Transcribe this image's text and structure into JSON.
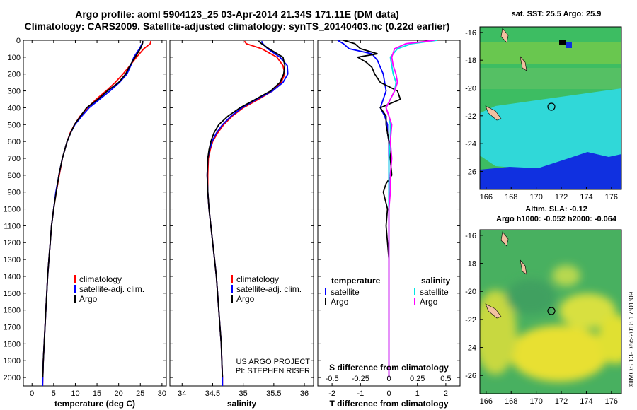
{
  "header": {
    "title_line1": "Argo profile: aoml 5904123_25 03-Apr-2014 21.34S 171.11E (DM data)",
    "title_line2": "Climatology: CARS2009. Satellite-adjusted climatology: synTS_20140403.nc (0.22d earlier)"
  },
  "credit": "©IMOS 13-Dec-2018 17:01:09",
  "colors": {
    "climatology": "#ff0000",
    "satellite": "#0000ff",
    "argo": "#000000",
    "sal_satellite": "#00e5e5",
    "sal_argo": "#ff00ff"
  },
  "chart_data": [
    {
      "type": "line",
      "xlabel": "temperature (deg C)",
      "ylabel": "",
      "xlim": [
        -2,
        31
      ],
      "ylim": [
        2050,
        0
      ],
      "xticks": [
        0,
        5,
        10,
        15,
        20,
        25,
        30
      ],
      "yticks": [
        0,
        100,
        200,
        300,
        400,
        500,
        600,
        700,
        800,
        900,
        1000,
        1100,
        1200,
        1300,
        1400,
        1500,
        1600,
        1700,
        1800,
        1900,
        2000
      ],
      "legend_position": "middle",
      "series": [
        {
          "name": "climatology",
          "color": "#ff0000",
          "depth": [
            5,
            20,
            50,
            100,
            150,
            200,
            250,
            300,
            350,
            400,
            450,
            500,
            550,
            600,
            700,
            800,
            900,
            1000,
            1100,
            1200,
            1300,
            1400,
            1500,
            1600,
            1700,
            1800,
            1900,
            2000,
            2050
          ],
          "values": [
            27.4,
            27.3,
            25.8,
            24.1,
            22.6,
            21.0,
            19.2,
            17.1,
            14.8,
            12.8,
            11.1,
            9.8,
            8.8,
            8.1,
            7.0,
            6.3,
            5.6,
            5.0,
            4.5,
            4.2,
            3.9,
            3.6,
            3.4,
            3.2,
            3.0,
            2.8,
            2.6,
            2.5,
            2.45
          ]
        },
        {
          "name": "satellite-adj. clim.",
          "color": "#0000ff",
          "depth": [
            5,
            20,
            50,
            100,
            150,
            200,
            250,
            300,
            350,
            400,
            450,
            500,
            550,
            600,
            700,
            800,
            900,
            1000,
            1100,
            1200,
            1300,
            1400,
            1500,
            1600,
            1700,
            1800,
            1900,
            2000,
            2050
          ],
          "values": [
            25.6,
            25.4,
            24.8,
            23.5,
            22.8,
            21.9,
            20.2,
            18.0,
            15.6,
            13.2,
            11.5,
            9.9,
            8.9,
            8.1,
            7.0,
            6.2,
            5.5,
            5.0,
            4.5,
            4.2,
            3.9,
            3.6,
            3.4,
            3.2,
            3.0,
            2.8,
            2.6,
            2.5,
            2.45
          ]
        },
        {
          "name": "Argo",
          "color": "#000000",
          "depth": [
            5,
            20,
            50,
            100,
            150,
            200,
            250,
            300,
            350,
            400,
            450,
            500,
            550,
            600,
            700,
            800,
            900,
            1000,
            1100,
            1200,
            1300,
            1400,
            1500,
            1600,
            1700,
            1800,
            1900,
            2000
          ],
          "values": [
            25.6,
            25.5,
            25.0,
            23.8,
            22.6,
            21.6,
            20.0,
            17.4,
            15.2,
            12.6,
            11.2,
            9.8,
            8.9,
            8.1,
            7.0,
            6.2,
            5.6,
            5.0,
            4.5,
            4.2,
            3.9,
            3.6,
            3.4,
            3.2,
            3.0,
            2.8,
            2.6,
            2.5
          ]
        }
      ]
    },
    {
      "type": "line",
      "xlabel": "salinity",
      "ylabel": "",
      "xlim": [
        33.8,
        36.15
      ],
      "ylim": [
        2050,
        0
      ],
      "xticks": [
        34,
        34.5,
        35,
        35.5,
        36
      ],
      "legend_position": "middle",
      "annotations": [
        "US ARGO PROJECT",
        "PI: STEPHEN RISER"
      ],
      "series": [
        {
          "name": "climatology",
          "color": "#ff0000",
          "depth": [
            5,
            20,
            50,
            100,
            150,
            200,
            250,
            300,
            350,
            400,
            450,
            500,
            550,
            600,
            650,
            700,
            800,
            900,
            1000,
            1100,
            1200,
            1300,
            1400,
            1500,
            1600,
            1700,
            1800,
            1900,
            2000,
            2050
          ],
          "values": [
            35.02,
            35.05,
            35.3,
            35.55,
            35.65,
            35.68,
            35.62,
            35.48,
            35.25,
            35.0,
            34.82,
            34.68,
            34.58,
            34.5,
            34.46,
            34.43,
            34.42,
            34.42,
            34.44,
            34.47,
            34.5,
            34.53,
            34.56,
            34.58,
            34.6,
            34.62,
            34.64,
            34.65,
            34.66,
            34.66
          ]
        },
        {
          "name": "satellite-adj. clim.",
          "color": "#0000ff",
          "depth": [
            5,
            20,
            50,
            100,
            150,
            200,
            250,
            300,
            350,
            400,
            450,
            500,
            550,
            600,
            650,
            700,
            800,
            900,
            1000,
            1100,
            1200,
            1300,
            1400,
            1500,
            1600,
            1700,
            1800,
            1900,
            2000,
            2050
          ],
          "values": [
            35.3,
            35.32,
            35.4,
            35.6,
            35.72,
            35.73,
            35.65,
            35.48,
            35.22,
            34.98,
            34.8,
            34.66,
            34.56,
            34.49,
            34.45,
            34.42,
            34.41,
            34.42,
            34.44,
            34.47,
            34.5,
            34.53,
            34.56,
            34.58,
            34.6,
            34.62,
            34.64,
            34.65,
            34.66,
            34.66
          ]
        },
        {
          "name": "Argo",
          "color": "#000000",
          "depth": [
            5,
            20,
            50,
            100,
            150,
            200,
            250,
            300,
            350,
            400,
            450,
            500,
            550,
            600,
            650,
            700,
            800,
            900,
            1000,
            1100,
            1200,
            1300,
            1400,
            1500,
            1600,
            1700,
            1800,
            1900,
            2000
          ],
          "values": [
            35.25,
            35.3,
            35.42,
            35.65,
            35.68,
            35.66,
            35.6,
            35.45,
            35.2,
            34.95,
            34.75,
            34.6,
            34.52,
            34.47,
            34.44,
            34.42,
            34.41,
            34.42,
            34.44,
            34.47,
            34.5,
            34.53,
            34.56,
            34.58,
            34.6,
            34.62,
            34.64,
            34.65,
            34.66
          ]
        }
      ]
    },
    {
      "type": "line",
      "xlabel": "T difference from climatology",
      "xlabel_top": "S difference from climatology",
      "ylabel": "",
      "xlim": [
        -2.5,
        2.5
      ],
      "ylim": [
        2050,
        0
      ],
      "xticks": [
        -2,
        -1,
        0,
        1,
        2
      ],
      "xticks_top_labels": [
        "-0.5",
        "-0.25",
        "0",
        "0.25",
        "0.5"
      ],
      "legend_position": "middle",
      "legend_left_title": "temperature",
      "legend_right_title": "salinity",
      "series": [
        {
          "name": "satellite",
          "group": "temperature",
          "color": "#0000ff",
          "depth": [
            0,
            20,
            50,
            80,
            120,
            160,
            200,
            250,
            300,
            400,
            450,
            500,
            550,
            600,
            700,
            800,
            900,
            1000,
            1200,
            1400,
            1600,
            1800,
            2000
          ],
          "values": [
            -1.8,
            -1.6,
            -1.4,
            -0.6,
            -0.4,
            -0.3,
            -0.2,
            -0.15,
            -0.1,
            -0.3,
            -0.15,
            -0.05,
            -0.05,
            0.0,
            0.0,
            0.0,
            0.0,
            0.0,
            0.0,
            0.0,
            0.0,
            0.0,
            0.0
          ]
        },
        {
          "name": "Argo",
          "group": "temperature",
          "color": "#000000",
          "depth": [
            0,
            20,
            50,
            80,
            100,
            130,
            160,
            200,
            250,
            300,
            350,
            400,
            450,
            500,
            550,
            600,
            700,
            800,
            850,
            900,
            1000,
            1100,
            1200,
            1300,
            1400,
            1500,
            1600,
            1700,
            1800,
            1900,
            2000
          ],
          "values": [
            -1.6,
            -1.2,
            -1.0,
            -0.4,
            -1.1,
            -0.8,
            -0.6,
            -0.5,
            -0.3,
            0.3,
            0.4,
            -0.3,
            -0.1,
            -0.1,
            -0.05,
            0.0,
            0.05,
            0.1,
            -0.1,
            -0.2,
            -0.05,
            -0.1,
            -0.05,
            0.0,
            0.0,
            0.0,
            0.0,
            0.0,
            0.0,
            0.0,
            0.0
          ]
        },
        {
          "name": "satellite",
          "group": "salinity",
          "color": "#00e5e5",
          "depth": [
            0,
            20,
            50,
            100,
            150,
            200,
            250,
            300,
            400,
            450,
            500,
            600,
            700,
            800,
            900,
            1000,
            1200,
            1400,
            1600,
            1800,
            2000
          ],
          "values": [
            1.7,
            0.8,
            0.3,
            0.05,
            0.1,
            0.15,
            0.25,
            0.2,
            -0.1,
            0.0,
            0.05,
            0.05,
            0.0,
            0.0,
            0.0,
            0.0,
            0.0,
            0.0,
            0.0,
            0.0,
            0.0
          ]
        },
        {
          "name": "Argo",
          "group": "salinity",
          "color": "#ff00ff",
          "depth": [
            0,
            20,
            50,
            100,
            150,
            200,
            250,
            300,
            400,
            450,
            500,
            600,
            700,
            800,
            900,
            1000,
            1200,
            1400,
            1600,
            1800,
            2000
          ],
          "values": [
            1.6,
            0.6,
            0.2,
            0.1,
            0.15,
            0.25,
            0.3,
            0.2,
            -0.1,
            0.0,
            0.1,
            0.05,
            0.1,
            0.05,
            0.05,
            0.0,
            0.0,
            0.0,
            0.0,
            0.0,
            0.0
          ]
        }
      ]
    },
    {
      "type": "heatmap",
      "title": "sat. SST: 25.5 Argo: 25.9",
      "xticks": [
        166,
        168,
        170,
        172,
        174,
        176
      ],
      "yticks": [
        -16,
        -18,
        -20,
        -22,
        -24,
        -26
      ],
      "xlim": [
        165.5,
        176.8
      ],
      "ylim": [
        -27.3,
        -15.6
      ],
      "argo_position": [
        171.11,
        -21.34
      ]
    },
    {
      "type": "heatmap",
      "title": "Altim. SLA: -0.12",
      "subtitle": "Argo h1000: -0.052 h2000: -0.064",
      "xticks": [
        166,
        168,
        170,
        172,
        174,
        176
      ],
      "yticks": [
        -16,
        -18,
        -20,
        -22,
        -24,
        -26
      ],
      "xlim": [
        165.5,
        176.8
      ],
      "ylim": [
        -27.3,
        -15.6
      ],
      "argo_position": [
        171.11,
        -21.34
      ]
    }
  ]
}
